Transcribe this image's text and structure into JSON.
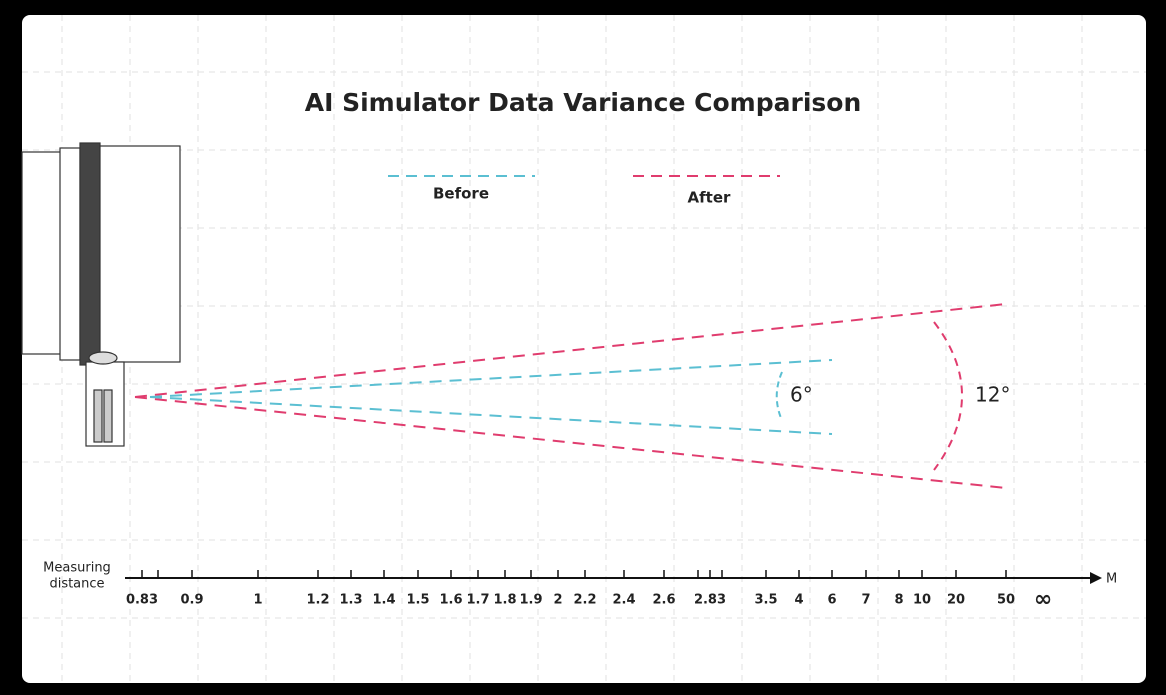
{
  "header": {
    "title": "AI Simulator Data Variance Comparison"
  },
  "legend": {
    "before": "Before",
    "after": "After"
  },
  "angles": {
    "before": "6°",
    "after": "12°"
  },
  "axis": {
    "label_lines": [
      "Measuring",
      "distance"
    ],
    "unit": "M",
    "ticks": [
      "0.83",
      "0.9",
      "1",
      "1.2",
      "1.3",
      "1.4",
      "1.5",
      "1.6",
      "1.7",
      "1.8",
      "1.9",
      "2",
      "2.2",
      "2.4",
      "2.6",
      "2.83",
      "3.5",
      "4",
      "6",
      "7",
      "8",
      "10",
      "20",
      "50",
      "∞"
    ]
  }
}
